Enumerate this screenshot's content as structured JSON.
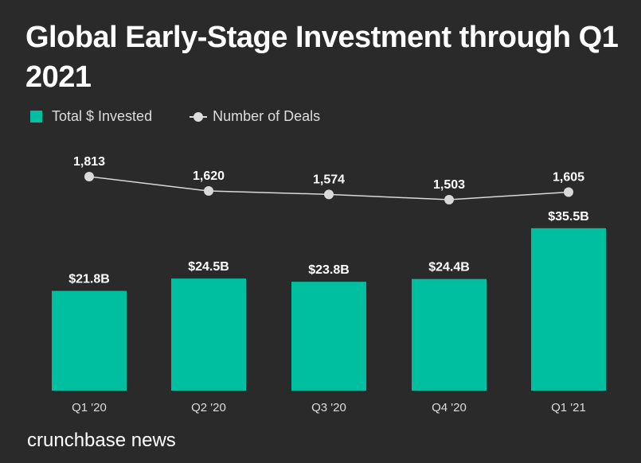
{
  "chart_data": {
    "type": "bar",
    "title": "Global Early-Stage Investment through Q1 2021",
    "categories": [
      "Q1 '20",
      "Q2 '20",
      "Q3 '20",
      "Q4 '20",
      "Q1 '21"
    ],
    "series": [
      {
        "name": "Total $ Invested",
        "type": "bar",
        "unit": "$B",
        "values": [
          21.8,
          24.5,
          23.8,
          24.4,
          35.5
        ],
        "labels": [
          "$21.8B",
          "$24.5B",
          "$23.8B",
          "$24.4B",
          "$35.5B"
        ],
        "color": "#00bfa0"
      },
      {
        "name": "Number of Deals",
        "type": "line",
        "values": [
          1813,
          1620,
          1574,
          1503,
          1605
        ],
        "labels": [
          "1,813",
          "1,620",
          "1,574",
          "1,503",
          "1,605"
        ],
        "color": "#d9d9d9"
      }
    ],
    "legend": "top-left",
    "grid": false
  },
  "source": "crunchbase news"
}
